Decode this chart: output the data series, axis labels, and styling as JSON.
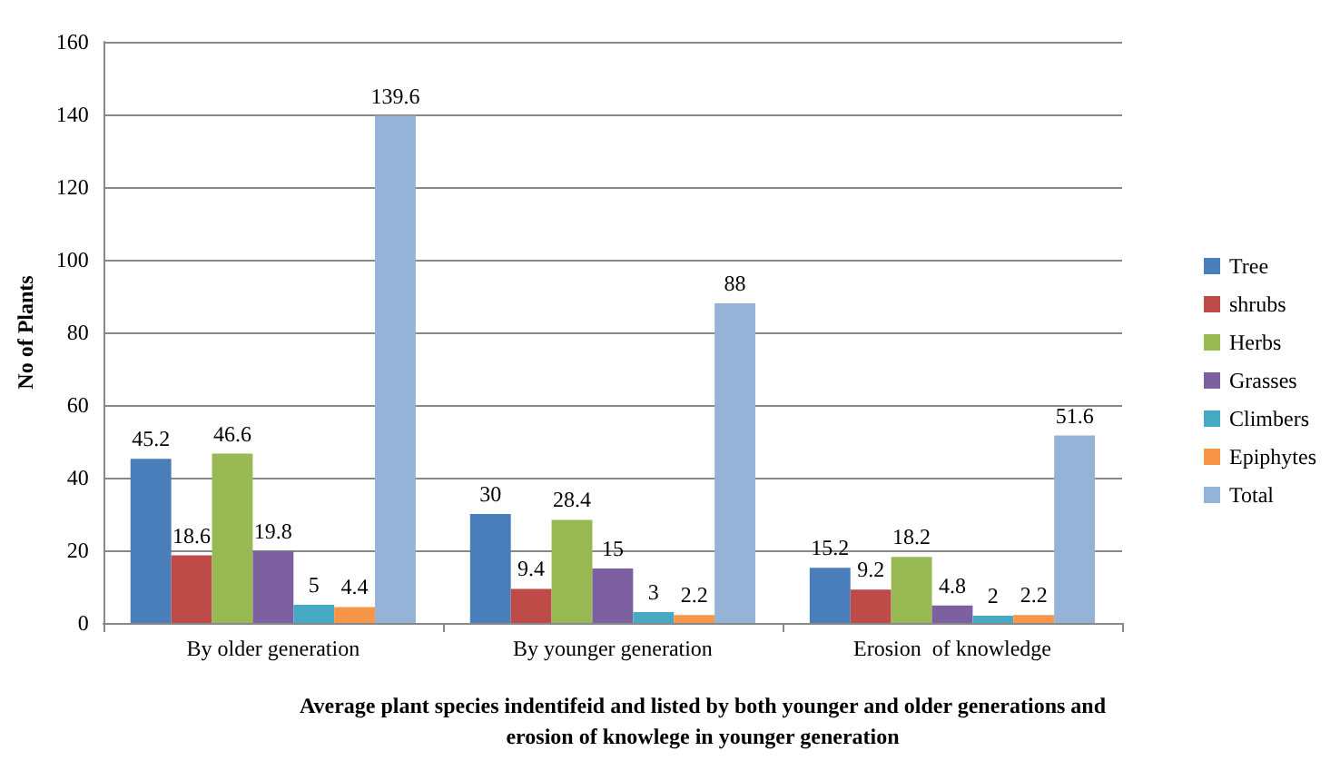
{
  "chart_data": {
    "type": "bar",
    "xlabel": "Average plant species indentifeid and listed by both younger and older generations and\nerosion of knowlege in younger generation",
    "ylabel": "No of Plants",
    "categories": [
      "By older generation",
      "By younger generation",
      "Erosion  of knowledge"
    ],
    "series": [
      {
        "name": "Tree",
        "color": "#4a7ebb",
        "values": [
          45.2,
          30,
          15.2
        ]
      },
      {
        "name": "shrubs",
        "color": "#be4b48",
        "values": [
          18.6,
          9.4,
          9.2
        ]
      },
      {
        "name": "Herbs",
        "color": "#98b954",
        "values": [
          46.6,
          28.4,
          18.2
        ]
      },
      {
        "name": "Grasses",
        "color": "#7d60a0",
        "values": [
          19.8,
          15,
          4.8
        ]
      },
      {
        "name": "Climbers",
        "color": "#46aac5",
        "values": [
          5,
          3,
          2
        ]
      },
      {
        "name": "Epiphytes",
        "color": "#f79646",
        "values": [
          4.4,
          2.2,
          2.2
        ]
      },
      {
        "name": "Total",
        "color": "#95b3d7",
        "values": [
          139.6,
          88,
          51.6
        ]
      }
    ],
    "ylim": [
      0,
      160
    ],
    "yticks": [
      0,
      20,
      40,
      60,
      80,
      100,
      120,
      140,
      160
    ],
    "grid": "y",
    "legend": "right",
    "data_labels": true
  }
}
